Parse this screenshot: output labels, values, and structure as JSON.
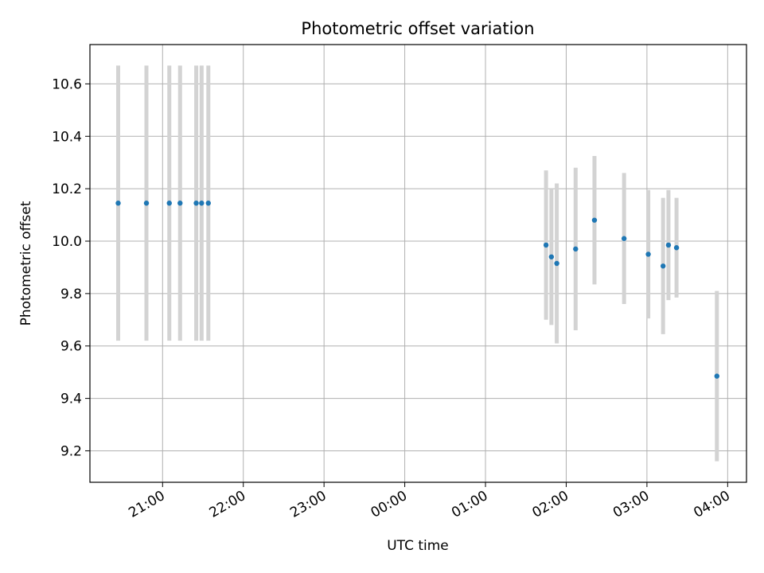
{
  "chart_data": {
    "type": "scatter",
    "title": "Photometric offset variation",
    "xlabel": "UTC time",
    "ylabel": "Photometric offset",
    "grid": true,
    "x_tick_labels": [
      "21:00",
      "22:00",
      "23:00",
      "00:00",
      "01:00",
      "02:00",
      "03:00",
      "04:00"
    ],
    "y_tick_labels": [
      "9.2",
      "9.4",
      "9.6",
      "9.8",
      "10.0",
      "10.2",
      "10.4",
      "10.6"
    ],
    "ylim": [
      9.08,
      10.75
    ],
    "xlim": [
      "20:06",
      "04:14"
    ],
    "colors": {
      "point": "#1f77b4",
      "errorbar": "#d3d3d3",
      "grid": "#b0b0b0"
    },
    "series": [
      {
        "points": [
          {
            "x": "20:27",
            "y": 10.145,
            "err": 0.525
          },
          {
            "x": "20:48",
            "y": 10.145,
            "err": 0.525
          },
          {
            "x": "21:05",
            "y": 10.145,
            "err": 0.525
          },
          {
            "x": "21:13",
            "y": 10.145,
            "err": 0.525
          },
          {
            "x": "21:25",
            "y": 10.145,
            "err": 0.525
          },
          {
            "x": "21:29",
            "y": 10.145,
            "err": 0.525
          },
          {
            "x": "21:34",
            "y": 10.145,
            "err": 0.525
          },
          {
            "x": "01:45",
            "y": 9.985,
            "err": 0.285
          },
          {
            "x": "01:49",
            "y": 9.94,
            "err": 0.26
          },
          {
            "x": "01:53",
            "y": 9.915,
            "err": 0.305
          },
          {
            "x": "02:07",
            "y": 9.97,
            "err": 0.31
          },
          {
            "x": "02:21",
            "y": 10.08,
            "err": 0.245
          },
          {
            "x": "02:43",
            "y": 10.01,
            "err": 0.25
          },
          {
            "x": "03:01",
            "y": 9.95,
            "err": 0.245
          },
          {
            "x": "03:12",
            "y": 9.905,
            "err": 0.26
          },
          {
            "x": "03:16",
            "y": 9.985,
            "err": 0.21
          },
          {
            "x": "03:22",
            "y": 9.975,
            "err": 0.19
          },
          {
            "x": "03:52",
            "y": 9.485,
            "err": 0.325
          }
        ]
      }
    ]
  }
}
